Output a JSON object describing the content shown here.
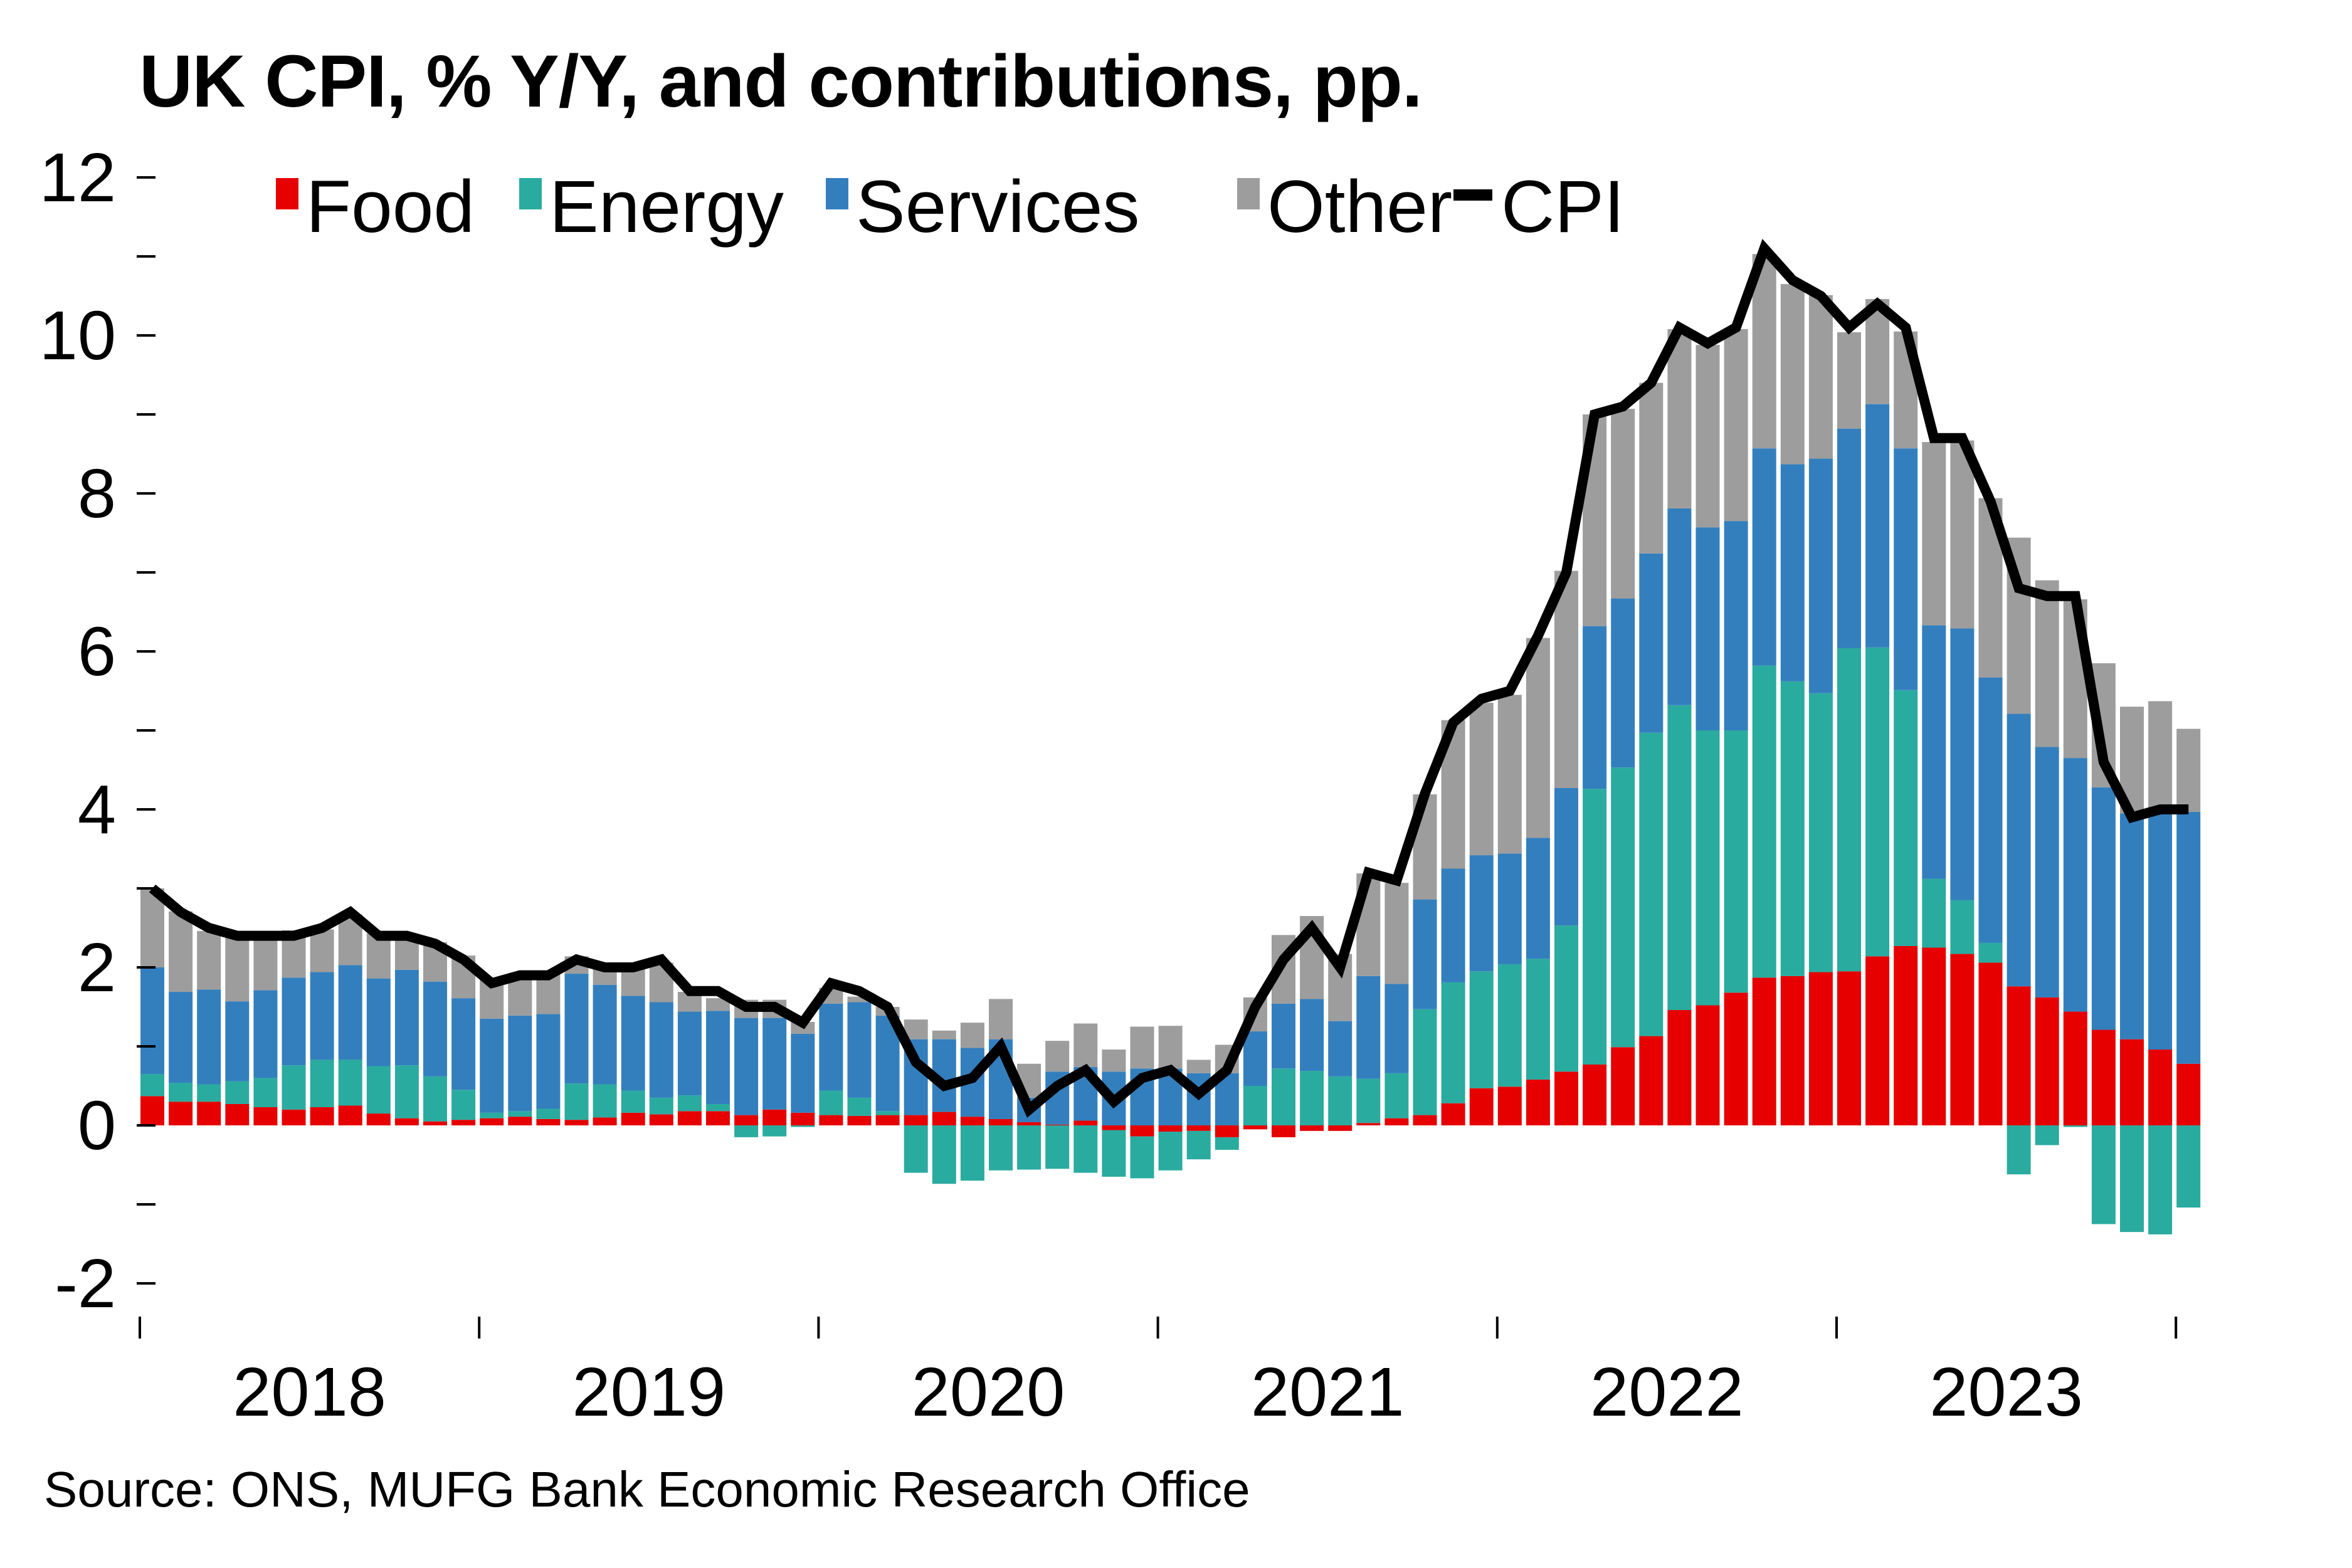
{
  "title": "UK CPI, % Y/Y, and contributions, pp.",
  "source": "Source: ONS, MUFG Bank Economic Research Office",
  "chart_data": {
    "type": "bar",
    "stacked": true,
    "title": "UK CPI, % Y/Y, and contributions, pp.",
    "xlabel": "",
    "ylabel": "",
    "ylim": [
      -2,
      12
    ],
    "yticks": [
      -2,
      0,
      2,
      4,
      6,
      8,
      10,
      12
    ],
    "ytick_labels": [
      "-2",
      "0",
      "2",
      "4",
      "6",
      "8",
      "10",
      "12"
    ],
    "xtick_labels": [
      "2018",
      "2019",
      "2020",
      "2021",
      "2022",
      "2023"
    ],
    "x_start": "2018-01",
    "x_end": "2024-01",
    "frequency": "monthly",
    "grid": false,
    "legend_position": "top",
    "categories": [
      "2018-01",
      "2018-02",
      "2018-03",
      "2018-04",
      "2018-05",
      "2018-06",
      "2018-07",
      "2018-08",
      "2018-09",
      "2018-10",
      "2018-11",
      "2018-12",
      "2019-01",
      "2019-02",
      "2019-03",
      "2019-04",
      "2019-05",
      "2019-06",
      "2019-07",
      "2019-08",
      "2019-09",
      "2019-10",
      "2019-11",
      "2019-12",
      "2020-01",
      "2020-02",
      "2020-03",
      "2020-04",
      "2020-05",
      "2020-06",
      "2020-07",
      "2020-08",
      "2020-09",
      "2020-10",
      "2020-11",
      "2020-12",
      "2021-01",
      "2021-02",
      "2021-03",
      "2021-04",
      "2021-05",
      "2021-06",
      "2021-07",
      "2021-08",
      "2021-09",
      "2021-10",
      "2021-11",
      "2021-12",
      "2022-01",
      "2022-02",
      "2022-03",
      "2022-04",
      "2022-05",
      "2022-06",
      "2022-07",
      "2022-08",
      "2022-09",
      "2022-10",
      "2022-11",
      "2022-12",
      "2023-01",
      "2023-02",
      "2023-03",
      "2023-04",
      "2023-05",
      "2023-06",
      "2023-07",
      "2023-08",
      "2023-09",
      "2023-10",
      "2023-11",
      "2023-12",
      "2024-01"
    ],
    "series": [
      {
        "name": "Food",
        "type": "bar",
        "color": "#E60000",
        "values": [
          0.37,
          0.3,
          0.3,
          0.27,
          0.23,
          0.2,
          0.23,
          0.25,
          0.15,
          0.09,
          0.05,
          0.07,
          0.09,
          0.11,
          0.08,
          0.07,
          0.1,
          0.16,
          0.14,
          0.18,
          0.18,
          0.13,
          0.2,
          0.16,
          0.13,
          0.12,
          0.13,
          0.13,
          0.17,
          0.11,
          0.08,
          0.04,
          0.01,
          0.06,
          -0.06,
          -0.14,
          -0.08,
          -0.07,
          -0.15,
          -0.05,
          -0.15,
          -0.07,
          -0.07,
          0.03,
          0.09,
          0.13,
          0.28,
          0.47,
          0.49,
          0.58,
          0.68,
          0.77,
          0.99,
          1.13,
          1.46,
          1.52,
          1.68,
          1.87,
          1.89,
          1.94,
          1.95,
          2.14,
          2.27,
          2.25,
          2.17,
          2.06,
          1.76,
          1.62,
          1.44,
          1.21,
          1.09,
          0.96,
          0.78
        ]
      },
      {
        "name": "Energy",
        "type": "bar",
        "color": "#2AAB9F",
        "values": [
          0.28,
          0.24,
          0.22,
          0.29,
          0.37,
          0.56,
          0.6,
          0.58,
          0.6,
          0.67,
          0.57,
          0.38,
          0.07,
          0.07,
          0.13,
          0.46,
          0.42,
          0.28,
          0.21,
          0.2,
          0.09,
          -0.15,
          -0.14,
          -0.02,
          0.31,
          0.23,
          0.05,
          -0.6,
          -0.74,
          -0.7,
          -0.57,
          -0.56,
          -0.55,
          -0.6,
          -0.59,
          -0.53,
          -0.49,
          -0.36,
          -0.16,
          0.5,
          0.72,
          0.69,
          0.62,
          0.56,
          0.57,
          1.34,
          1.53,
          1.48,
          1.55,
          1.53,
          1.85,
          3.49,
          3.54,
          3.84,
          3.86,
          3.48,
          3.32,
          3.95,
          3.73,
          3.53,
          4.09,
          3.91,
          3.24,
          0.87,
          0.68,
          0.25,
          -0.62,
          -0.25,
          -0.02,
          -1.25,
          -1.35,
          -1.38,
          -1.04
        ]
      },
      {
        "name": "Services",
        "type": "bar",
        "color": "#337FBE",
        "values": [
          1.35,
          1.15,
          1.2,
          1.01,
          1.11,
          1.11,
          1.11,
          1.2,
          1.11,
          1.21,
          1.2,
          1.16,
          1.19,
          1.21,
          1.2,
          1.39,
          1.26,
          1.2,
          1.21,
          1.06,
          1.18,
          1.23,
          1.16,
          1.0,
          1.1,
          1.21,
          1.21,
          0.96,
          0.92,
          0.87,
          1.01,
          0.31,
          0.67,
          0.68,
          0.68,
          0.72,
          0.72,
          0.66,
          0.66,
          0.69,
          0.82,
          0.91,
          0.7,
          1.3,
          1.13,
          1.39,
          1.44,
          1.47,
          1.4,
          1.53,
          1.74,
          2.06,
          2.14,
          2.27,
          2.49,
          2.57,
          2.65,
          2.75,
          2.75,
          2.97,
          2.78,
          3.08,
          3.06,
          3.21,
          3.44,
          3.36,
          3.45,
          3.17,
          3.21,
          3.07,
          2.86,
          2.98,
          3.19
        ]
      },
      {
        "name": "Other",
        "type": "bar",
        "color": "#9D9D9D",
        "values": [
          1.0,
          1.02,
          0.74,
          0.82,
          0.72,
          0.6,
          0.54,
          0.64,
          0.57,
          0.43,
          0.5,
          0.54,
          0.51,
          0.48,
          0.53,
          0.22,
          0.21,
          0.35,
          0.5,
          0.25,
          0.16,
          0.23,
          0.23,
          0.15,
          0.2,
          0.07,
          0.11,
          0.25,
          0.11,
          0.32,
          0.51,
          0.43,
          0.39,
          0.55,
          0.28,
          0.53,
          0.54,
          0.17,
          0.36,
          0.43,
          0.87,
          1.05,
          0.85,
          1.3,
          1.28,
          1.33,
          1.88,
          1.93,
          2.01,
          2.53,
          2.75,
          2.68,
          2.4,
          2.16,
          2.27,
          2.31,
          2.43,
          2.46,
          2.28,
          2.07,
          1.22,
          1.33,
          1.48,
          2.32,
          2.38,
          2.27,
          2.23,
          2.11,
          2.01,
          1.57,
          1.35,
          1.43,
          1.05
        ]
      },
      {
        "name": "CPI",
        "type": "line",
        "color": "#000000",
        "values": [
          3.0,
          2.7,
          2.5,
          2.4,
          2.4,
          2.4,
          2.5,
          2.7,
          2.4,
          2.4,
          2.3,
          2.1,
          1.8,
          1.9,
          1.9,
          2.1,
          2.0,
          2.0,
          2.1,
          1.7,
          1.7,
          1.5,
          1.5,
          1.3,
          1.8,
          1.7,
          1.5,
          0.8,
          0.5,
          0.6,
          1.0,
          0.2,
          0.5,
          0.7,
          0.3,
          0.6,
          0.7,
          0.4,
          0.7,
          1.5,
          2.1,
          2.5,
          2.0,
          3.2,
          3.1,
          4.2,
          5.1,
          5.4,
          5.5,
          6.2,
          7.0,
          9.0,
          9.1,
          9.4,
          10.1,
          9.9,
          10.1,
          11.1,
          10.7,
          10.5,
          10.1,
          10.4,
          10.1,
          8.7,
          8.7,
          7.9,
          6.8,
          6.7,
          6.7,
          4.6,
          3.9,
          4.0,
          4.0
        ]
      }
    ]
  }
}
